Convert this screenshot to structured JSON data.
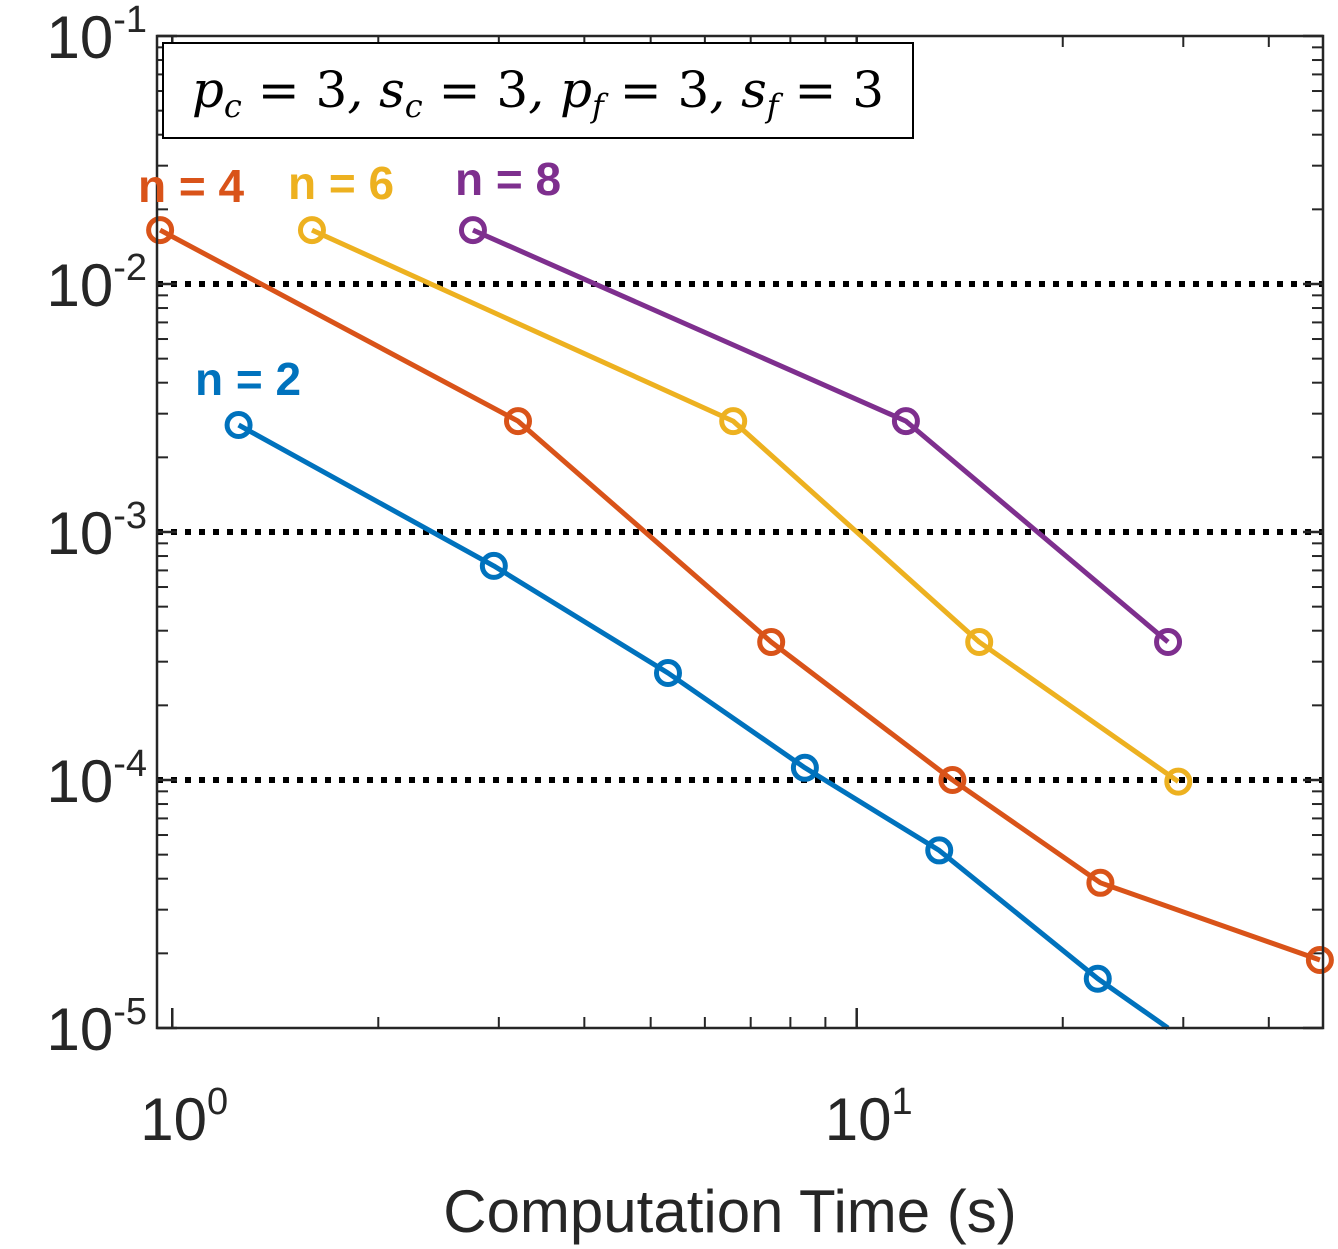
{
  "chart_data": {
    "type": "line",
    "xscale": "log",
    "yscale": "log",
    "xlim": [
      0.95,
      48
    ],
    "ylim": [
      1e-05,
      0.1
    ],
    "xlabel": "Computation Time (s)",
    "ylabel": "",
    "x_ticks": [
      {
        "base": "10",
        "exp": "0",
        "value": 1
      },
      {
        "base": "10",
        "exp": "1",
        "value": 10
      }
    ],
    "y_ticks": [
      {
        "base": "10",
        "exp": "-1",
        "value": 0.1
      },
      {
        "base": "10",
        "exp": "-2",
        "value": 0.01
      },
      {
        "base": "10",
        "exp": "-3",
        "value": 0.001
      },
      {
        "base": "10",
        "exp": "-4",
        "value": 0.0001
      },
      {
        "base": "10",
        "exp": "-5",
        "value": 1e-05
      }
    ],
    "reference_lines": [
      0.01,
      0.001,
      0.0001
    ],
    "annotation": "p_c = 3, s_c = 3, p_f = 3, s_f = 3",
    "series": [
      {
        "name": "n = 2",
        "color": "#0072BD",
        "x": [
          1.25,
          2.95,
          5.3,
          8.4,
          13.2,
          22.5,
          28.5
        ],
        "y": [
          0.0027,
          0.00073,
          0.00027,
          0.000112,
          5.2e-05,
          1.58e-05,
          1e-05
        ]
      },
      {
        "name": "n = 4",
        "color": "#D95319",
        "x": [
          0.96,
          3.2,
          7.5,
          13.8,
          22.7,
          47.5
        ],
        "y": [
          0.0165,
          0.0028,
          0.00036,
          0.0001,
          3.85e-05,
          1.88e-05
        ]
      },
      {
        "name": "n = 6",
        "color": "#EDB120",
        "x": [
          1.6,
          6.6,
          15.1,
          29.5
        ],
        "y": [
          0.0165,
          0.0028,
          0.00036,
          9.85e-05
        ]
      },
      {
        "name": "n = 8",
        "color": "#7E2F8E",
        "x": [
          2.75,
          11.8,
          28.5
        ],
        "y": [
          0.0165,
          0.0028,
          0.00036
        ]
      }
    ]
  }
}
